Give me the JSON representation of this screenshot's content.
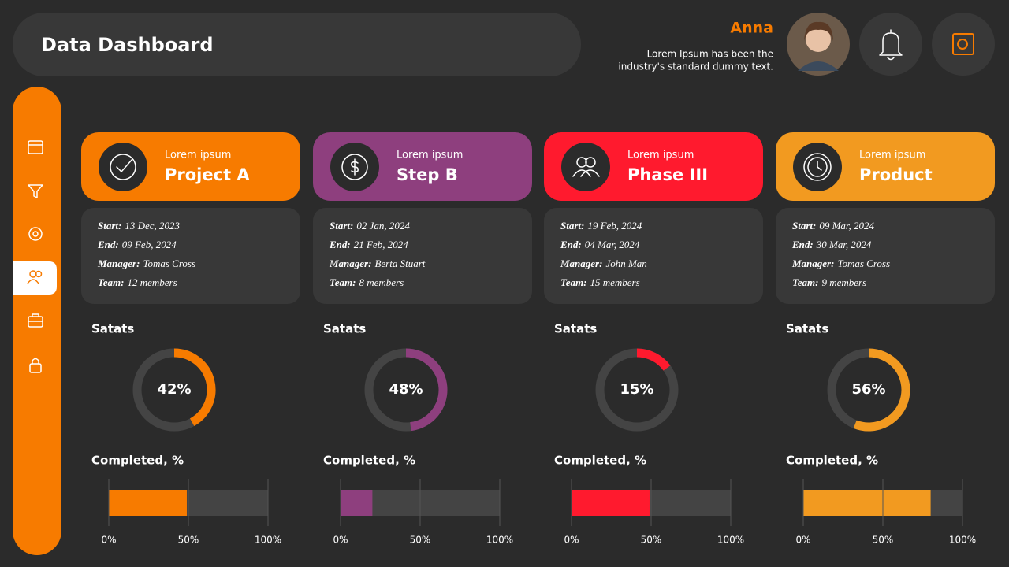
{
  "header": {
    "title": "Data Dashboard",
    "user_name": "Anna",
    "user_text": [
      "Lorem Ipsum has been the",
      "industry's standard dummy text."
    ]
  },
  "cards": [
    {
      "eyebrow": "Lorem ipsum",
      "title": "Project A",
      "color": "#f77b00",
      "details": [
        {
          "label": "Start:",
          "value": "13 Dec, 2023"
        },
        {
          "label": "End:",
          "value": "09 Feb, 2024"
        },
        {
          "label": "Manager:",
          "value": "Tomas Cross"
        },
        {
          "label": "Team:",
          "value": "12 members"
        }
      ]
    },
    {
      "eyebrow": "Lorem ipsum",
      "title": "Step B",
      "color": "#8e3f7e",
      "details": [
        {
          "label": "Start:",
          "value": "02 Jan, 2024"
        },
        {
          "label": "End:",
          "value": "21 Feb, 2024"
        },
        {
          "label": "Manager:",
          "value": "Berta Stuart"
        },
        {
          "label": "Team:",
          "value": "8 members"
        }
      ]
    },
    {
      "eyebrow": "Lorem ipsum",
      "title": "Phase III",
      "color": "#ff1a2e",
      "details": [
        {
          "label": "Start:",
          "value": "19 Feb, 2024"
        },
        {
          "label": "End:",
          "value": "04 Mar, 2024"
        },
        {
          "label": "Manager:",
          "value": "John Man"
        },
        {
          "label": "Team:",
          "value": "15 members"
        }
      ]
    },
    {
      "eyebrow": "Lorem ipsum",
      "title": "Product",
      "color": "#f29a20",
      "details": [
        {
          "label": "Start:",
          "value": "09 Mar, 2024"
        },
        {
          "label": "End:",
          "value": "30 Mar, 2024"
        },
        {
          "label": "Manager:",
          "value": "Tomas Cross"
        },
        {
          "label": "Team:",
          "value": "9 members"
        }
      ]
    }
  ],
  "chart_data": [
    {
      "type": "donut",
      "title": "Satats",
      "values": [
        42
      ],
      "value_labels": [
        "42%"
      ],
      "color": "#f77b00"
    },
    {
      "type": "donut",
      "title": "Satats",
      "values": [
        48
      ],
      "value_labels": [
        "48%"
      ],
      "color": "#8e3f7e"
    },
    {
      "type": "donut",
      "title": "Satats",
      "values": [
        15
      ],
      "value_labels": [
        "15%"
      ],
      "color": "#ff1a2e"
    },
    {
      "type": "donut",
      "title": "Satats",
      "values": [
        56
      ],
      "value_labels": [
        "56%"
      ],
      "color": "#f29a20"
    },
    {
      "type": "bar",
      "title": "Completed, %",
      "values": [
        49
      ],
      "color": "#f77b00",
      "xlim": [
        0,
        100
      ],
      "xticks": [
        {
          "value": 0,
          "label": "0%"
        },
        {
          "value": 50,
          "label": "50%"
        },
        {
          "value": 100,
          "label": "100%"
        }
      ]
    },
    {
      "type": "bar",
      "title": "Completed, %",
      "values": [
        20
      ],
      "color": "#8e3f7e",
      "xlim": [
        0,
        100
      ],
      "xticks": [
        {
          "value": 0,
          "label": "0%"
        },
        {
          "value": 50,
          "label": "50%"
        },
        {
          "value": 100,
          "label": "100%"
        }
      ]
    },
    {
      "type": "bar",
      "title": "Completed, %",
      "values": [
        49
      ],
      "color": "#ff1a2e",
      "xlim": [
        0,
        100
      ],
      "xticks": [
        {
          "value": 0,
          "label": "0%"
        },
        {
          "value": 50,
          "label": "50%"
        },
        {
          "value": 100,
          "label": "100%"
        }
      ]
    },
    {
      "type": "bar",
      "title": "Completed, %",
      "values": [
        80
      ],
      "color": "#f29a20",
      "xlim": [
        0,
        100
      ],
      "xticks": [
        {
          "value": 0,
          "label": "0%"
        },
        {
          "value": 50,
          "label": "50%"
        },
        {
          "value": 100,
          "label": "100%"
        }
      ]
    }
  ]
}
